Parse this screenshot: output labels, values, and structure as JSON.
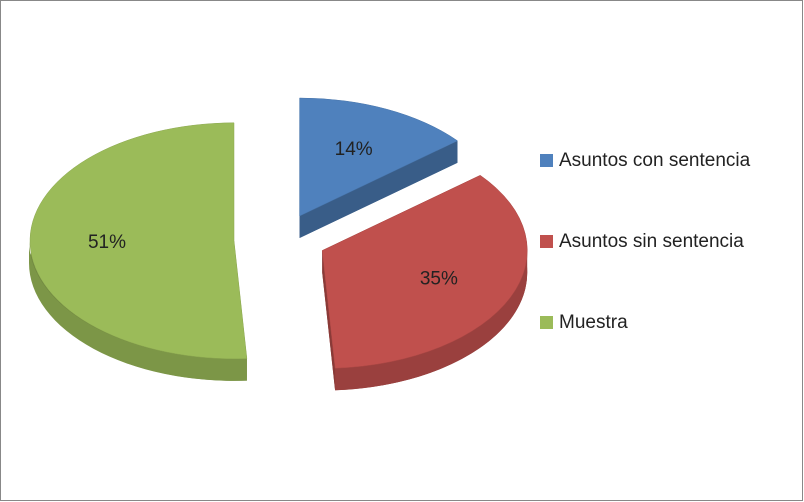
{
  "chart_data": {
    "type": "pie",
    "categories": [
      "Asuntos con sentencia",
      "Asuntos sin sentencia",
      "Muestra"
    ],
    "values": [
      14,
      35,
      51
    ],
    "value_labels": [
      "14%",
      "35%",
      "51%"
    ],
    "colors": [
      "#4f81bd",
      "#c0504d",
      "#9bbb59"
    ],
    "legend": "right"
  }
}
